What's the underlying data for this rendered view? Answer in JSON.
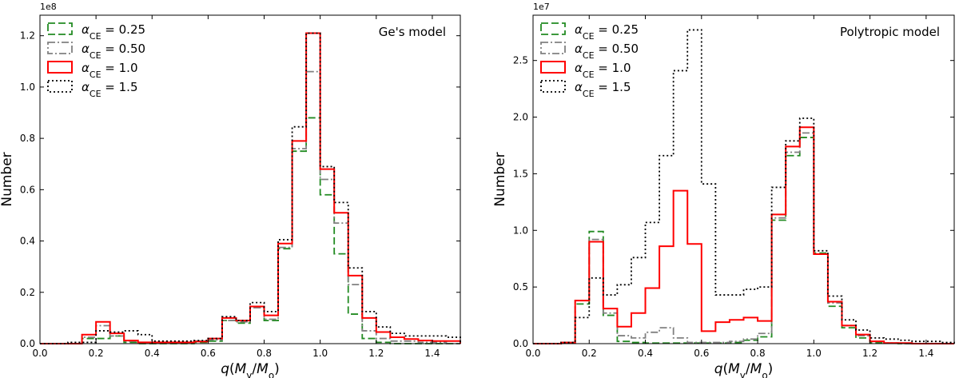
{
  "colors": {
    "green": "#228b22",
    "gray": "#808080",
    "red": "#ff0000",
    "black": "#000000"
  },
  "chart_data": [
    {
      "type": "histogram",
      "title": "Ge's model",
      "xlabel": "q(M_y/M_o)",
      "ylabel": "Number",
      "offset_text": "1e8",
      "xlim": [
        0.0,
        1.5
      ],
      "ylim": [
        0.0,
        1.28
      ],
      "xticks": [
        0.0,
        0.2,
        0.4,
        0.6,
        0.8,
        1.0,
        1.2,
        1.4
      ],
      "yticks": [
        0.0,
        0.2,
        0.4,
        0.6,
        0.8,
        1.0,
        1.2
      ],
      "bin_edges": [
        0.0,
        0.05,
        0.1,
        0.15,
        0.2,
        0.25,
        0.3,
        0.35,
        0.4,
        0.45,
        0.5,
        0.55,
        0.6,
        0.65,
        0.7,
        0.75,
        0.8,
        0.85,
        0.9,
        0.95,
        1.0,
        1.05,
        1.1,
        1.15,
        1.2,
        1.25,
        1.3,
        1.35,
        1.4,
        1.45,
        1.5
      ],
      "series": [
        {
          "name": "α_CE = 0.25",
          "style": "dashed",
          "color": "green",
          "values": [
            0.0,
            0.0,
            0.0,
            0.02,
            0.02,
            0.03,
            0.005,
            0.0,
            0.0,
            0.0,
            0.0,
            0.005,
            0.01,
            0.09,
            0.08,
            0.14,
            0.09,
            0.37,
            0.75,
            0.88,
            0.58,
            0.35,
            0.115,
            0.02,
            0.005,
            0.0,
            0.0,
            0.0,
            0.0,
            0.0
          ]
        },
        {
          "name": "α_CE = 0.50",
          "style": "dashdot",
          "color": "gray",
          "values": [
            0.0,
            0.0,
            0.0,
            0.025,
            0.07,
            0.03,
            0.01,
            0.005,
            0.005,
            0.005,
            0.005,
            0.01,
            0.015,
            0.09,
            0.085,
            0.14,
            0.095,
            0.375,
            0.76,
            1.06,
            0.64,
            0.47,
            0.23,
            0.05,
            0.02,
            0.01,
            0.01,
            0.005,
            0.005,
            0.0
          ]
        },
        {
          "name": "α_CE = 1.0",
          "style": "solid",
          "color": "red",
          "values": [
            0.0,
            0.0,
            0.0,
            0.035,
            0.085,
            0.04,
            0.012,
            0.005,
            0.005,
            0.005,
            0.005,
            0.008,
            0.02,
            0.1,
            0.09,
            0.145,
            0.11,
            0.39,
            0.79,
            1.21,
            0.68,
            0.51,
            0.265,
            0.1,
            0.045,
            0.025,
            0.018,
            0.012,
            0.01,
            0.01
          ]
        },
        {
          "name": "α_CE = 1.5",
          "style": "dotted",
          "color": "black",
          "values": [
            0.0,
            0.0,
            0.005,
            0.005,
            0.05,
            0.045,
            0.05,
            0.035,
            0.01,
            0.01,
            0.01,
            0.012,
            0.02,
            0.105,
            0.09,
            0.16,
            0.125,
            0.405,
            0.845,
            1.21,
            0.69,
            0.55,
            0.295,
            0.125,
            0.065,
            0.04,
            0.03,
            0.03,
            0.03,
            0.025
          ]
        }
      ]
    },
    {
      "type": "histogram",
      "title": "Polytropic model",
      "xlabel": "q(M_y/M_o)",
      "ylabel": "Number",
      "offset_text": "1e7",
      "xlim": [
        0.0,
        1.5
      ],
      "ylim": [
        0.0,
        2.9
      ],
      "xticks": [
        0.0,
        0.2,
        0.4,
        0.6,
        0.8,
        1.0,
        1.2,
        1.4
      ],
      "yticks": [
        0.0,
        0.5,
        1.0,
        1.5,
        2.0,
        2.5
      ],
      "bin_edges": [
        0.0,
        0.05,
        0.1,
        0.15,
        0.2,
        0.25,
        0.3,
        0.35,
        0.4,
        0.45,
        0.5,
        0.55,
        0.6,
        0.65,
        0.7,
        0.75,
        0.8,
        0.85,
        0.9,
        0.95,
        1.0,
        1.05,
        1.1,
        1.15,
        1.2,
        1.25,
        1.3,
        1.35,
        1.4,
        1.45,
        1.5
      ],
      "series": [
        {
          "name": "α_CE = 0.25",
          "style": "dashed",
          "color": "green",
          "values": [
            0.0,
            0.0,
            0.01,
            0.35,
            0.99,
            0.25,
            0.02,
            0.01,
            0.005,
            0.005,
            0.005,
            0.005,
            0.005,
            0.005,
            0.01,
            0.03,
            0.06,
            1.09,
            1.66,
            1.82,
            0.8,
            0.33,
            0.14,
            0.05,
            0.01,
            0.005,
            0.0,
            0.0,
            0.0,
            0.0
          ]
        },
        {
          "name": "α_CE = 0.50",
          "style": "dashdot",
          "color": "gray",
          "values": [
            0.0,
            0.0,
            0.01,
            0.38,
            0.92,
            0.27,
            0.07,
            0.05,
            0.1,
            0.14,
            0.05,
            0.01,
            0.01,
            0.01,
            0.02,
            0.04,
            0.09,
            1.11,
            1.69,
            1.86,
            0.79,
            0.36,
            0.16,
            0.07,
            0.02,
            0.005,
            0.0,
            0.0,
            0.0,
            0.0
          ]
        },
        {
          "name": "α_CE = 1.0",
          "style": "solid",
          "color": "red",
          "values": [
            0.0,
            0.0,
            0.01,
            0.38,
            0.9,
            0.31,
            0.15,
            0.27,
            0.49,
            0.86,
            1.35,
            0.88,
            0.11,
            0.19,
            0.21,
            0.23,
            0.2,
            1.14,
            1.74,
            1.91,
            0.79,
            0.37,
            0.16,
            0.08,
            0.02,
            0.005,
            0.005,
            0.0,
            0.0,
            0.0
          ]
        },
        {
          "name": "α_CE = 1.5",
          "style": "dotted",
          "color": "black",
          "values": [
            0.0,
            0.0,
            0.01,
            0.23,
            0.58,
            0.43,
            0.52,
            0.76,
            1.07,
            1.66,
            2.41,
            2.77,
            1.41,
            0.43,
            0.43,
            0.48,
            0.5,
            1.38,
            1.79,
            1.99,
            0.82,
            0.42,
            0.21,
            0.12,
            0.05,
            0.04,
            0.03,
            0.02,
            0.02,
            0.01
          ]
        }
      ]
    }
  ]
}
